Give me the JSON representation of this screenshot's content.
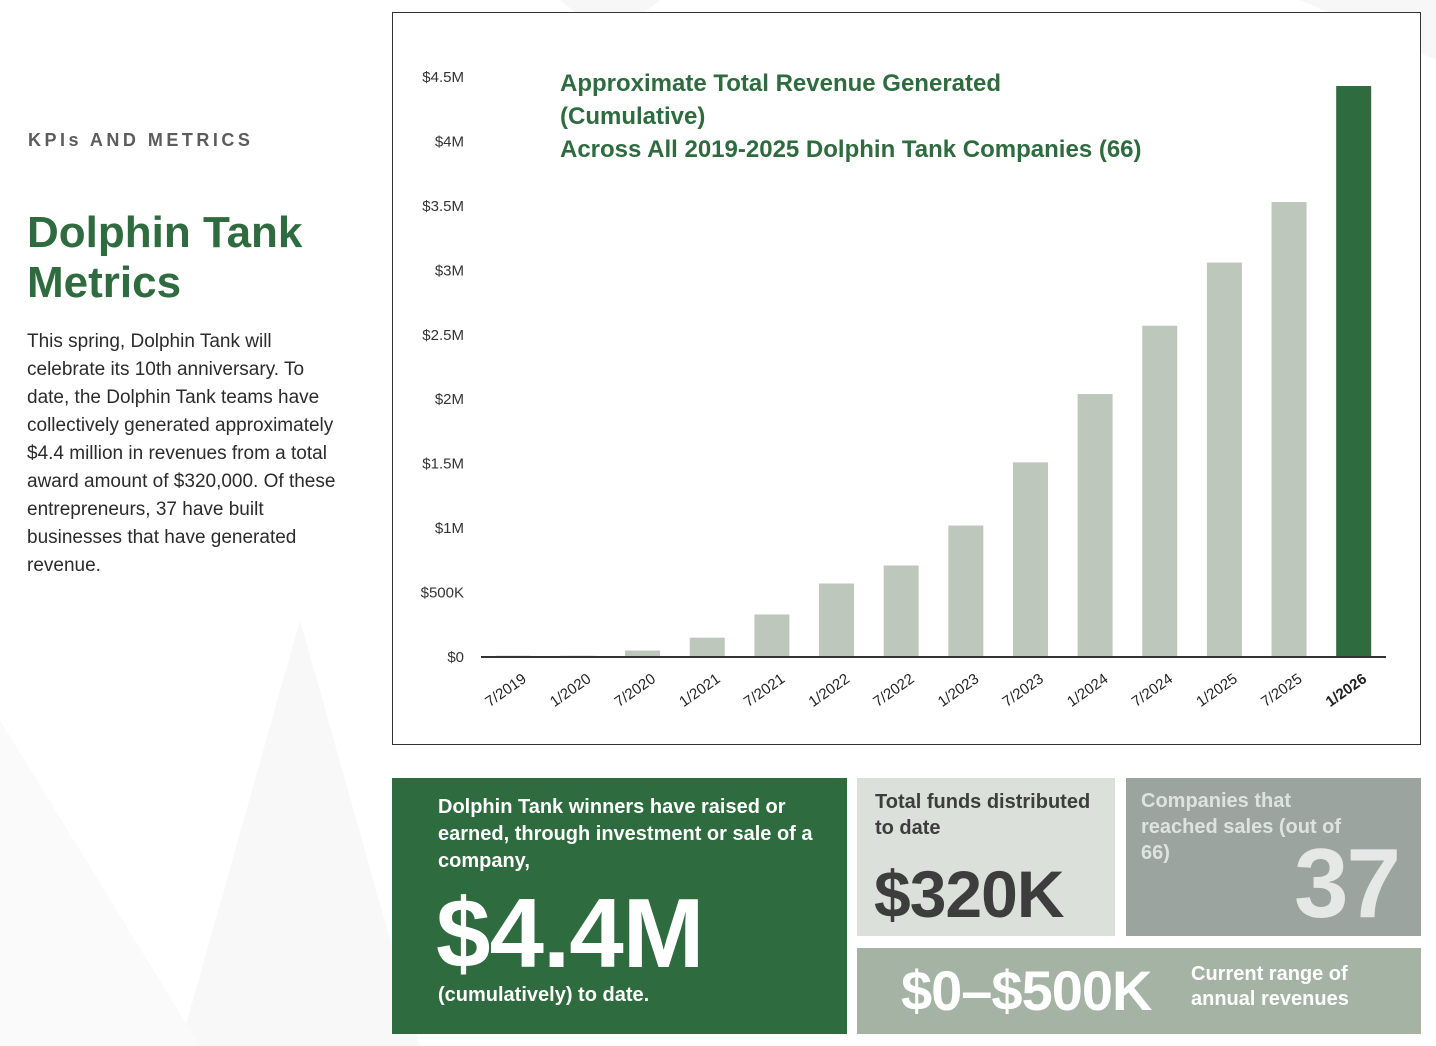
{
  "sidebar": {
    "kicker": "KPIs AND METRICS",
    "title": "Dolphin Tank Metrics",
    "body": "This spring, Dolphin Tank will celebrate its 10th anniversary. To date, the Dolphin Tank teams have collectively generated approximately $4.4 million in revenues from a total award amount of $320,000. Of these entrepreneurs, 37 have built businesses that have generated revenue."
  },
  "chart_data": {
    "type": "bar",
    "title_lines": [
      "Approximate Total Revenue Generated",
      "(Cumulative)",
      "Across All 2019-2025 Dolphin Tank Companies (66)"
    ],
    "categories": [
      "7/2019",
      "1/2020",
      "7/2020",
      "1/2021",
      "7/2021",
      "1/2022",
      "7/2022",
      "1/2023",
      "7/2023",
      "1/2024",
      "7/2024",
      "1/2025",
      "7/2025",
      "1/2026"
    ],
    "values": [
      10000,
      10000,
      50000,
      150000,
      330000,
      570000,
      710000,
      1020000,
      1510000,
      2040000,
      2570000,
      3060000,
      3530000,
      4430000
    ],
    "ylim": [
      0,
      4500000
    ],
    "y_ticks": [
      0,
      500000,
      1000000,
      1500000,
      2000000,
      2500000,
      3000000,
      3500000,
      4000000,
      4500000
    ],
    "y_tick_labels": [
      "$0",
      "$500K",
      "$1M",
      "$1.5M",
      "$2M",
      "$2.5M",
      "$3M",
      "$3.5M",
      "$4M",
      "$4.5M"
    ],
    "xlabel": "",
    "ylabel": "",
    "grid": false,
    "highlight_index": 13,
    "colors": {
      "bar": "#bec7bb",
      "highlight": "#2e6b3e",
      "axis": "#333333",
      "title": "#2e6b3e"
    }
  },
  "tiles": {
    "raised": {
      "lead": "Dolphin Tank winners have raised or earned, through investment or sale of a company,",
      "value": "$4.4M",
      "foot": "(cumulatively) to date."
    },
    "funds": {
      "label": "Total funds distributed to date",
      "value": "$320K"
    },
    "companies": {
      "label": "Companies that reached sales (out of 66)",
      "value": "37"
    },
    "range": {
      "value": "$0–$500K",
      "label": "Current range of annual revenues"
    }
  }
}
